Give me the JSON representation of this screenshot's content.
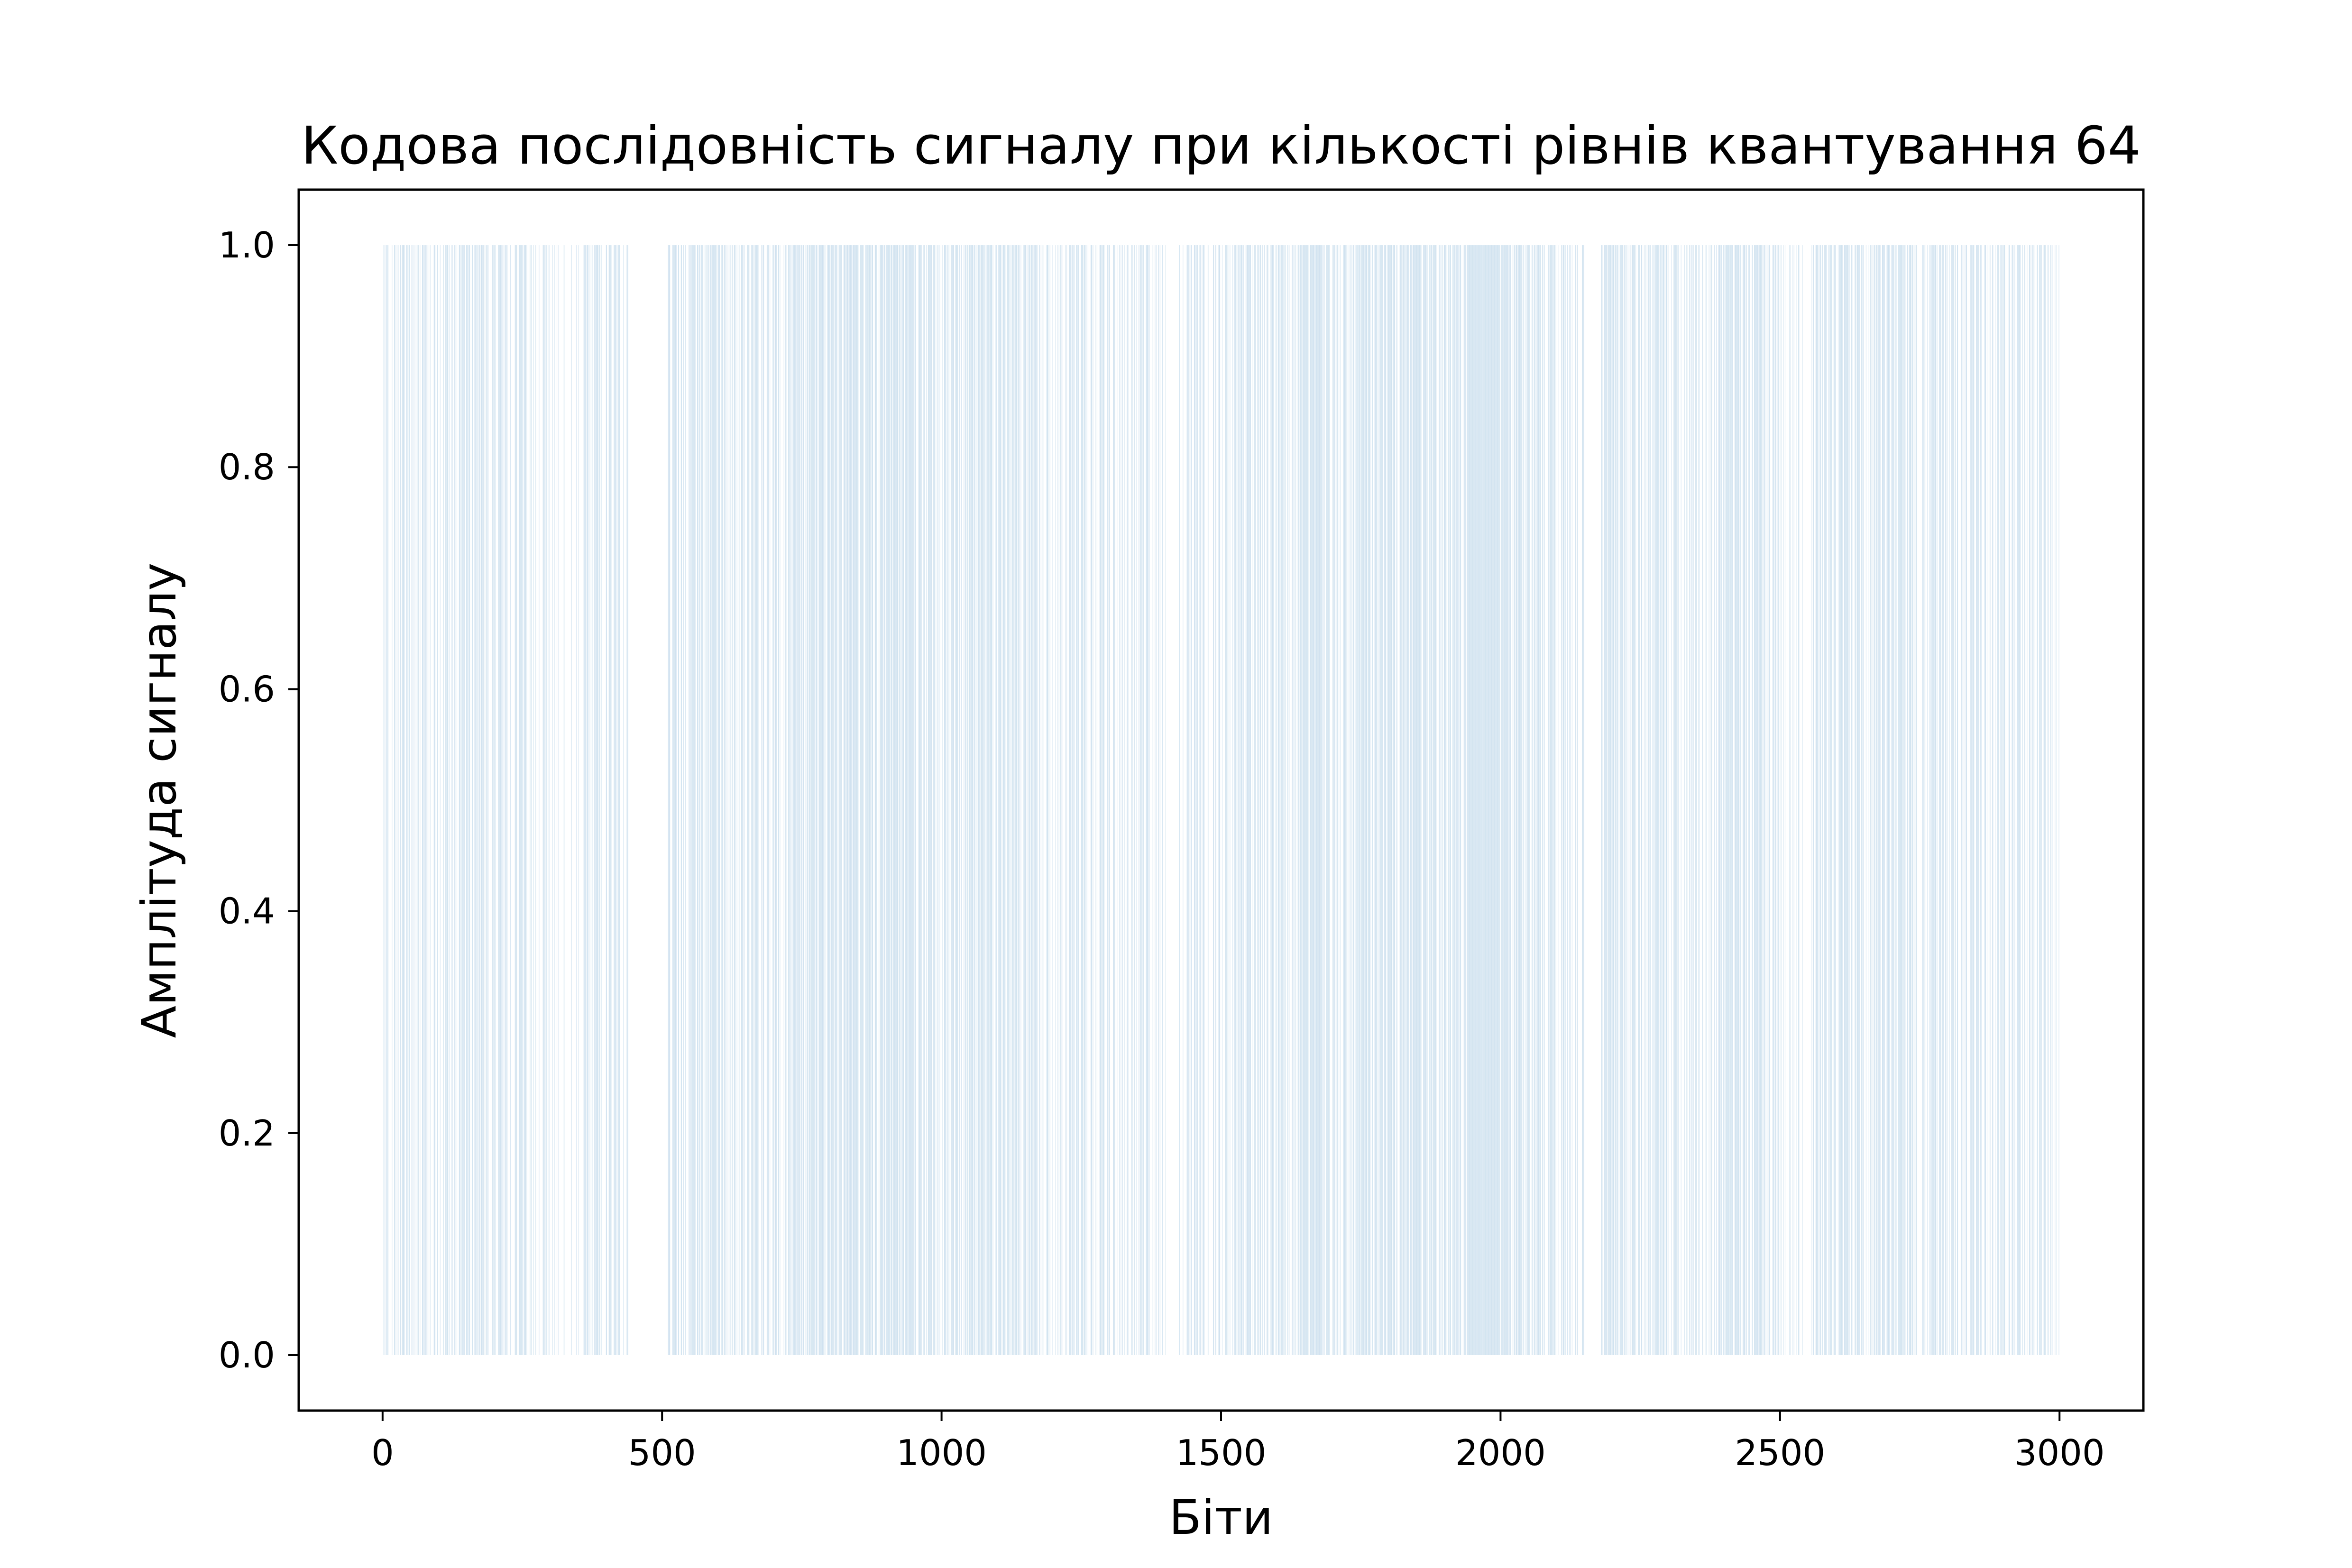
{
  "chart_data": {
    "type": "bar",
    "title": "Кодова послідовність сигналу при кількості рівнів квантування 64",
    "xlabel": "Біти",
    "ylabel": "Амплітуда сигналу",
    "xlim": [
      -150,
      3150
    ],
    "ylim": [
      -0.05,
      1.05
    ],
    "xticks": [
      0,
      500,
      1000,
      1500,
      2000,
      2500,
      3000
    ],
    "xtick_labels": [
      "0",
      "500",
      "1000",
      "1500",
      "2000",
      "2500",
      "3000"
    ],
    "yticks": [
      0.0,
      0.2,
      0.4,
      0.6,
      0.8,
      1.0
    ],
    "ytick_labels": [
      "0.0",
      "0.2",
      "0.4",
      "0.6",
      "0.8",
      "1.0"
    ],
    "grid": false,
    "bar_color": "#1f77b4",
    "bar_value": 1.0,
    "bit_count": 3000,
    "one_bit_density_segments": [
      {
        "x": [
          0,
          60
        ],
        "density": 0.55
      },
      {
        "x": [
          60,
          120
        ],
        "density": 0.45
      },
      {
        "x": [
          120,
          180
        ],
        "density": 0.5
      },
      {
        "x": [
          180,
          260
        ],
        "density": 0.55
      },
      {
        "x": [
          260,
          300
        ],
        "density": 0.4
      },
      {
        "x": [
          300,
          360
        ],
        "density": 0.2
      },
      {
        "x": [
          360,
          440
        ],
        "density": 0.45
      },
      {
        "x": [
          440,
          510
        ],
        "density": 0.0
      },
      {
        "x": [
          510,
          650
        ],
        "density": 0.6
      },
      {
        "x": [
          650,
          760
        ],
        "density": 0.55
      },
      {
        "x": [
          760,
          980
        ],
        "density": 0.75
      },
      {
        "x": [
          980,
          1100
        ],
        "density": 0.65
      },
      {
        "x": [
          1100,
          1180
        ],
        "density": 0.6
      },
      {
        "x": [
          1180,
          1300
        ],
        "density": 0.5
      },
      {
        "x": [
          1300,
          1520
        ],
        "density": 0.35
      },
      {
        "x": [
          1520,
          1650
        ],
        "density": 0.55
      },
      {
        "x": [
          1650,
          1750
        ],
        "density": 0.65
      },
      {
        "x": [
          1750,
          1940
        ],
        "density": 0.7
      },
      {
        "x": [
          1940,
          2010
        ],
        "density": 0.95
      },
      {
        "x": [
          2010,
          2100
        ],
        "density": 0.6
      },
      {
        "x": [
          2100,
          2150
        ],
        "density": 0.4
      },
      {
        "x": [
          2150,
          2180
        ],
        "density": 0.0
      },
      {
        "x": [
          2180,
          2300
        ],
        "density": 0.55
      },
      {
        "x": [
          2300,
          2370
        ],
        "density": 0.45
      },
      {
        "x": [
          2370,
          2510
        ],
        "density": 0.6
      },
      {
        "x": [
          2510,
          2560
        ],
        "density": 0.2
      },
      {
        "x": [
          2560,
          2750
        ],
        "density": 0.6
      },
      {
        "x": [
          2750,
          2820
        ],
        "density": 0.4
      },
      {
        "x": [
          2820,
          3000
        ],
        "density": 0.5
      }
    ]
  }
}
